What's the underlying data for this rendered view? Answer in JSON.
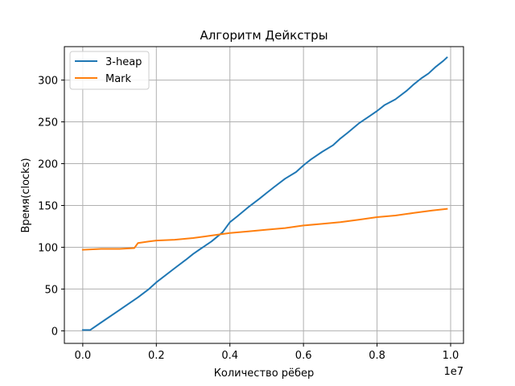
{
  "chart_data": {
    "type": "line",
    "title": "Алгоритм Дейкстры",
    "xlabel": "Количество рёбер",
    "ylabel": "Время(clocks)",
    "x_offset_label": "1e7",
    "xlim": [
      -0.05,
      1.035
    ],
    "ylim": [
      -15,
      340
    ],
    "xticks": [
      0.0,
      0.2,
      0.4,
      0.6,
      0.8,
      1.0
    ],
    "xtick_labels": [
      "0.0",
      "0.2",
      "0.4",
      "0.6",
      "0.8",
      "1.0"
    ],
    "yticks": [
      0,
      50,
      100,
      150,
      200,
      250,
      300
    ],
    "ytick_labels": [
      "0",
      "50",
      "100",
      "150",
      "200",
      "250",
      "300"
    ],
    "grid": true,
    "legend_position": "upper-left",
    "series": [
      {
        "name": "3-heap",
        "color": "#1f77b4",
        "x": [
          0.0,
          0.02,
          0.05,
          0.1,
          0.15,
          0.18,
          0.2,
          0.25,
          0.28,
          0.3,
          0.32,
          0.35,
          0.38,
          0.4,
          0.42,
          0.45,
          0.48,
          0.5,
          0.52,
          0.55,
          0.58,
          0.6,
          0.62,
          0.65,
          0.68,
          0.7,
          0.72,
          0.75,
          0.78,
          0.8,
          0.82,
          0.85,
          0.88,
          0.9,
          0.92,
          0.94,
          0.96,
          0.98,
          0.99
        ],
        "y": [
          1,
          1,
          10,
          25,
          40,
          50,
          58,
          75,
          85,
          92,
          98,
          107,
          118,
          130,
          137,
          148,
          158,
          165,
          172,
          182,
          190,
          198,
          205,
          214,
          222,
          230,
          237,
          248,
          257,
          263,
          270,
          277,
          287,
          295,
          302,
          308,
          316,
          323,
          327
        ]
      },
      {
        "name": "Mark",
        "color": "#ff7f0e",
        "x": [
          0.0,
          0.05,
          0.1,
          0.14,
          0.15,
          0.18,
          0.2,
          0.25,
          0.3,
          0.35,
          0.4,
          0.45,
          0.5,
          0.55,
          0.6,
          0.65,
          0.7,
          0.75,
          0.8,
          0.85,
          0.9,
          0.95,
          0.99
        ],
        "y": [
          97,
          98,
          98,
          99,
          105,
          107,
          108,
          109,
          111,
          114,
          117,
          119,
          121,
          123,
          126,
          128,
          130,
          133,
          136,
          138,
          141,
          144,
          146
        ]
      }
    ]
  }
}
